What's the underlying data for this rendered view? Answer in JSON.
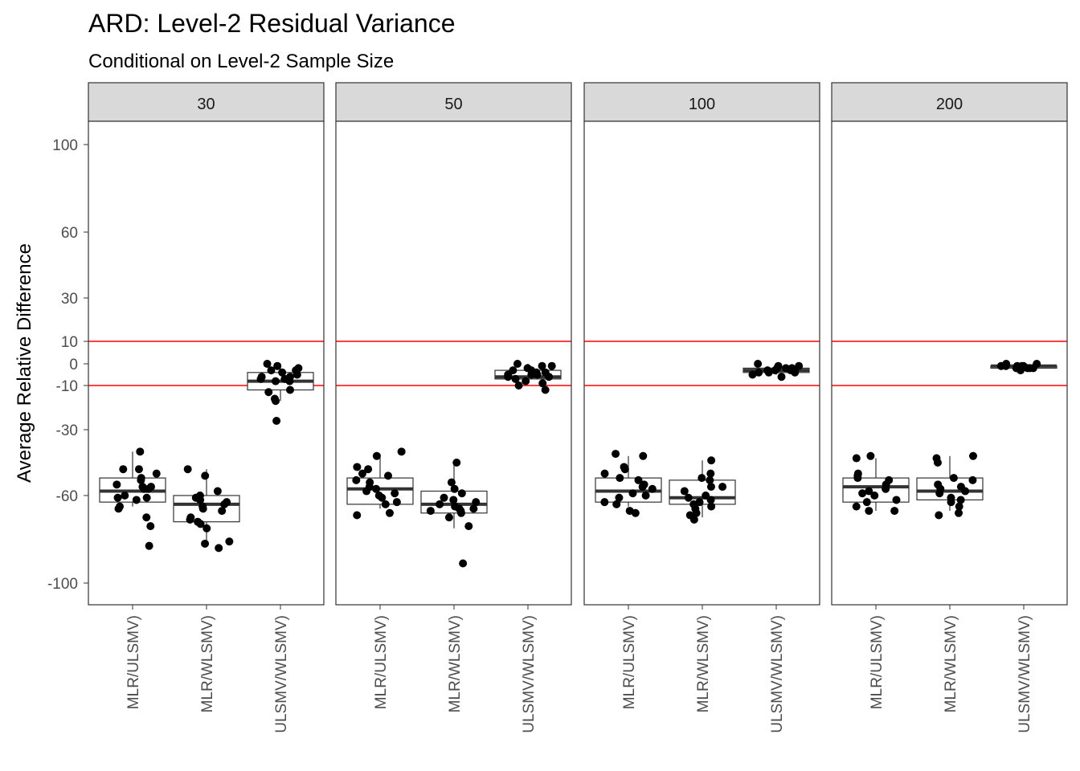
{
  "chart_data": {
    "type": "box",
    "title": "ARD: Level-2 Residual Variance",
    "subtitle": "Conditional on Level-2 Sample Size",
    "ylabel": "Average Relative Difference",
    "xlabel": "",
    "ylim": [
      -110,
      110
    ],
    "y_ticks": [
      100,
      60,
      30,
      10,
      0,
      -10,
      -30,
      -60,
      -100
    ],
    "y_tick_labels": [
      "100",
      "60",
      "30",
      "10",
      "0",
      "-10",
      "-30",
      "-60",
      "-100"
    ],
    "reference_lines": [
      10,
      -10
    ],
    "reference_line_color": "#ff0000",
    "grid": false,
    "facet_labels": [
      "30",
      "50",
      "100",
      "200"
    ],
    "categories": [
      "MLR/ULSMV)",
      "MLR/WLSMV)",
      "ULSMV/WLSMV)"
    ],
    "panels": [
      {
        "facet": "30",
        "boxes": [
          {
            "category": "MLR/ULSMV)",
            "median": -58,
            "q1": -63,
            "q3": -52,
            "whisker_low": -65,
            "whisker_high": -40,
            "points": [
              -40,
              -48,
              -48,
              -50,
              -52,
              -53,
              -55,
              -56,
              -56,
              -57,
              -57,
              -60,
              -61,
              -61,
              -62,
              -65,
              -66,
              -70,
              -74,
              -83
            ]
          },
          {
            "category": "MLR/WLSMV)",
            "median": -64,
            "q1": -72,
            "q3": -60,
            "whisker_low": -82,
            "whisker_high": -48,
            "points": [
              -48,
              -51,
              -58,
              -60,
              -61,
              -62,
              -63,
              -64,
              -65,
              -66,
              -67,
              -70,
              -71,
              -72,
              -73,
              -75,
              -81,
              -82,
              -84
            ]
          },
          {
            "category": "ULSMV/WLSMV)",
            "median": -8,
            "q1": -12,
            "q3": -4,
            "whisker_low": -17,
            "whisker_high": 0,
            "points": [
              0,
              -1,
              -2,
              -3,
              -3,
              -4,
              -5,
              -6,
              -6,
              -7,
              -7,
              -8,
              -8,
              -12,
              -13,
              -16,
              -17,
              -26
            ]
          }
        ]
      },
      {
        "facet": "50",
        "boxes": [
          {
            "category": "MLR/ULSMV)",
            "median": -57,
            "q1": -64,
            "q3": -52,
            "whisker_low": -66,
            "whisker_high": -41,
            "points": [
              -40,
              -42,
              -47,
              -48,
              -50,
              -51,
              -53,
              -54,
              -56,
              -57,
              -58,
              -59,
              -60,
              -61,
              -63,
              -64,
              -68,
              -69
            ]
          },
          {
            "category": "MLR/WLSMV)",
            "median": -64,
            "q1": -68,
            "q3": -58,
            "whisker_low": -75,
            "whisker_high": -46,
            "points": [
              -45,
              -54,
              -57,
              -59,
              -61,
              -62,
              -63,
              -64,
              -65,
              -66,
              -66,
              -67,
              -67,
              -68,
              -70,
              -74,
              -91
            ]
          },
          {
            "category": "ULSMV/WLSMV)",
            "median": -6,
            "q1": -7,
            "q3": -3,
            "whisker_low": -9,
            "whisker_high": 0,
            "points": [
              0,
              -1,
              -1,
              -2,
              -3,
              -3,
              -4,
              -4,
              -5,
              -5,
              -5,
              -6,
              -6,
              -7,
              -8,
              -9,
              -10,
              -12
            ]
          }
        ]
      },
      {
        "facet": "100",
        "boxes": [
          {
            "category": "MLR/ULSMV)",
            "median": -58,
            "q1": -63,
            "q3": -52,
            "whisker_low": -65,
            "whisker_high": -42,
            "points": [
              -41,
              -42,
              -47,
              -48,
              -50,
              -52,
              -53,
              -55,
              -56,
              -57,
              -59,
              -60,
              -61,
              -63,
              -64,
              -67,
              -68
            ]
          },
          {
            "category": "MLR/WLSMV)",
            "median": -61,
            "q1": -64,
            "q3": -53,
            "whisker_low": -70,
            "whisker_high": -44,
            "points": [
              -44,
              -50,
              -52,
              -53,
              -56,
              -56,
              -58,
              -60,
              -61,
              -62,
              -63,
              -64,
              -65,
              -66,
              -68,
              -69,
              -71
            ]
          },
          {
            "category": "ULSMV/WLSMV)",
            "median": -3,
            "q1": -4,
            "q3": -2,
            "whisker_low": -5,
            "whisker_high": -1,
            "points": [
              0,
              -1,
              -1,
              -2,
              -2,
              -2,
              -3,
              -3,
              -3,
              -3,
              -4,
              -4,
              -4,
              -5,
              -6
            ]
          }
        ]
      },
      {
        "facet": "200",
        "boxes": [
          {
            "category": "MLR/ULSMV)",
            "median": -56,
            "q1": -63,
            "q3": -52,
            "whisker_low": -67,
            "whisker_high": -43,
            "points": [
              -42,
              -43,
              -50,
              -51,
              -52,
              -53,
              -55,
              -57,
              -58,
              -59,
              -60,
              -62,
              -63,
              -65,
              -67,
              -67
            ]
          },
          {
            "category": "MLR/WLSMV)",
            "median": -58,
            "q1": -62,
            "q3": -52,
            "whisker_low": -67,
            "whisker_high": -42,
            "points": [
              -42,
              -43,
              -45,
              -52,
              -53,
              -55,
              -56,
              -57,
              -58,
              -59,
              -61,
              -62,
              -63,
              -65,
              -68,
              -69
            ]
          },
          {
            "category": "ULSMV/WLSMV)",
            "median": -1,
            "q1": -2,
            "q3": -1,
            "whisker_low": -2,
            "whisker_high": 0,
            "points": [
              0,
              0,
              -1,
              -1,
              -1,
              -1,
              -1,
              -2,
              -2,
              -2,
              -2,
              -3
            ]
          }
        ]
      }
    ]
  }
}
